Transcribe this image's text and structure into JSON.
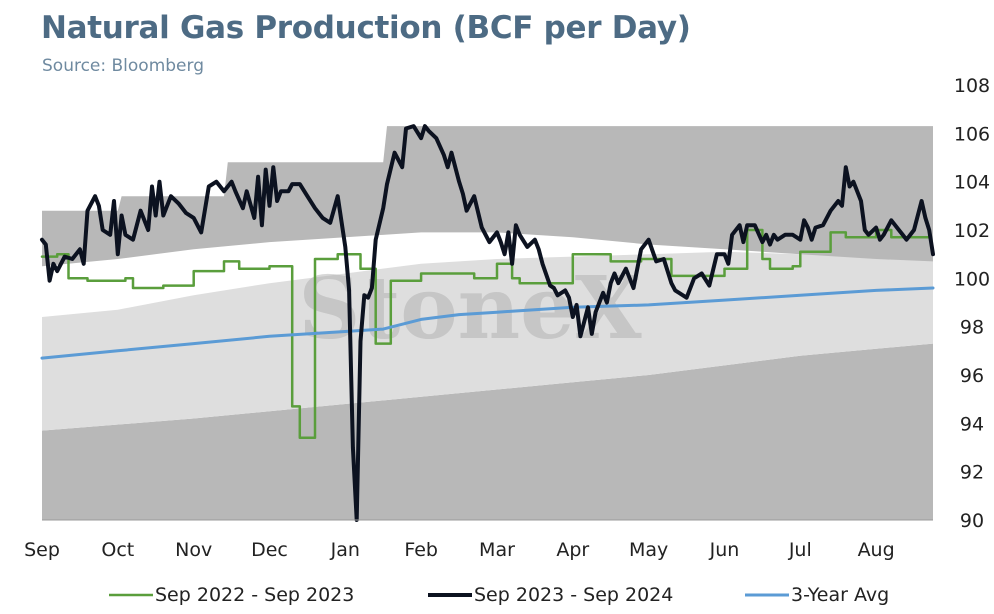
{
  "chart_data": {
    "type": "line",
    "title": "Natural Gas Production (BCF per Day)",
    "subtitle": "Source: Bloomberg",
    "watermark": "StoneX",
    "ylim": [
      90,
      108
    ],
    "y_ticks": [
      90,
      92,
      94,
      96,
      98,
      100,
      102,
      104,
      106,
      108
    ],
    "y_axis_position": "right",
    "x_tick_labels": [
      "Sep",
      "Oct",
      "Nov",
      "Dec",
      "Jan",
      "Feb",
      "Mar",
      "Apr",
      "May",
      "Jun",
      "Jul",
      "Aug"
    ],
    "grid": false,
    "legend_position": "bottom",
    "bands": [
      {
        "name": "range-dark-lower",
        "color": "#b8b8b8",
        "upper": [
          [
            0,
            93.7
          ],
          [
            2,
            94.2
          ],
          [
            4,
            94.8
          ],
          [
            6,
            95.4
          ],
          [
            8,
            96.0
          ],
          [
            10,
            96.8
          ],
          [
            11.75,
            97.3
          ]
        ],
        "lower": [
          [
            0,
            90
          ],
          [
            11.75,
            90
          ]
        ]
      },
      {
        "name": "range-light",
        "color": "#dedede",
        "upper": [
          [
            0,
            98.4
          ],
          [
            1,
            98.7
          ],
          [
            2,
            99.3
          ],
          [
            3,
            99.8
          ],
          [
            4,
            100.2
          ],
          [
            5,
            100.6
          ],
          [
            6,
            100.8
          ],
          [
            7,
            100.9
          ],
          [
            8,
            101.0
          ],
          [
            9,
            101.1
          ],
          [
            10,
            101.0
          ],
          [
            11,
            101.2
          ],
          [
            11.75,
            101.2
          ]
        ],
        "lower": [
          [
            0,
            93.7
          ],
          [
            2,
            94.2
          ],
          [
            4,
            94.8
          ],
          [
            6,
            95.4
          ],
          [
            8,
            96.0
          ],
          [
            10,
            96.8
          ],
          [
            11.75,
            97.3
          ]
        ]
      },
      {
        "name": "range-dark-upper",
        "color": "#b8b8b8",
        "upper": [
          [
            0,
            102.8
          ],
          [
            1,
            102.8
          ],
          [
            1.05,
            103.4
          ],
          [
            2.4,
            103.4
          ],
          [
            2.45,
            104.8
          ],
          [
            4.5,
            104.8
          ],
          [
            4.55,
            106.3
          ],
          [
            11.75,
            106.3
          ]
        ],
        "lower": [
          [
            0,
            100.5
          ],
          [
            1,
            100.8
          ],
          [
            2,
            101.2
          ],
          [
            3,
            101.5
          ],
          [
            4,
            101.7
          ],
          [
            5,
            101.9
          ],
          [
            6,
            101.9
          ],
          [
            7,
            101.7
          ],
          [
            8,
            101.4
          ],
          [
            9,
            101.2
          ],
          [
            10,
            101.0
          ],
          [
            11,
            100.8
          ],
          [
            11.75,
            100.7
          ]
        ]
      }
    ],
    "series": [
      {
        "name": "Sep 2022 - Sep 2023",
        "color": "#5a9e3c",
        "width": 2.5,
        "step": true,
        "values": [
          [
            0,
            100.9
          ],
          [
            0.2,
            101.0
          ],
          [
            0.35,
            100.0
          ],
          [
            0.6,
            99.9
          ],
          [
            1.1,
            100.0
          ],
          [
            1.2,
            99.6
          ],
          [
            1.6,
            99.7
          ],
          [
            1.9,
            99.7
          ],
          [
            2.0,
            100.3
          ],
          [
            2.4,
            100.7
          ],
          [
            2.6,
            100.4
          ],
          [
            3.0,
            100.5
          ],
          [
            3.3,
            94.7
          ],
          [
            3.4,
            93.4
          ],
          [
            3.6,
            100.8
          ],
          [
            3.9,
            101.0
          ],
          [
            4.2,
            100.4
          ],
          [
            4.4,
            97.3
          ],
          [
            4.6,
            99.9
          ],
          [
            5.0,
            100.2
          ],
          [
            5.2,
            100.2
          ],
          [
            5.7,
            100.0
          ],
          [
            6.0,
            100.6
          ],
          [
            6.2,
            100.0
          ],
          [
            6.3,
            99.8
          ],
          [
            7.0,
            101.0
          ],
          [
            7.5,
            100.7
          ],
          [
            7.9,
            100.8
          ],
          [
            8.3,
            100.1
          ],
          [
            9.0,
            100.4
          ],
          [
            9.3,
            102.0
          ],
          [
            9.5,
            100.8
          ],
          [
            9.6,
            100.4
          ],
          [
            9.9,
            100.5
          ],
          [
            10.0,
            101.1
          ],
          [
            10.4,
            101.9
          ],
          [
            10.6,
            101.7
          ],
          [
            11.0,
            102.0
          ],
          [
            11.2,
            101.7
          ],
          [
            11.5,
            101.7
          ],
          [
            11.7,
            101.9
          ]
        ]
      },
      {
        "name": "Sep 2023 - Sep 2024",
        "color": "#0c1220",
        "width": 4,
        "step": false,
        "values": [
          [
            0,
            101.6
          ],
          [
            0.05,
            101.4
          ],
          [
            0.1,
            99.9
          ],
          [
            0.15,
            100.6
          ],
          [
            0.2,
            100.3
          ],
          [
            0.3,
            100.9
          ],
          [
            0.4,
            100.8
          ],
          [
            0.5,
            101.2
          ],
          [
            0.55,
            100.6
          ],
          [
            0.6,
            102.8
          ],
          [
            0.7,
            103.4
          ],
          [
            0.75,
            103.0
          ],
          [
            0.8,
            102.0
          ],
          [
            0.9,
            101.8
          ],
          [
            0.95,
            103.2
          ],
          [
            1.0,
            101.0
          ],
          [
            1.05,
            102.6
          ],
          [
            1.1,
            101.8
          ],
          [
            1.2,
            101.6
          ],
          [
            1.3,
            102.8
          ],
          [
            1.4,
            102.0
          ],
          [
            1.45,
            103.8
          ],
          [
            1.5,
            102.6
          ],
          [
            1.55,
            104.0
          ],
          [
            1.6,
            102.6
          ],
          [
            1.7,
            103.4
          ],
          [
            1.8,
            103.1
          ],
          [
            1.9,
            102.7
          ],
          [
            2.0,
            102.5
          ],
          [
            2.1,
            101.9
          ],
          [
            2.2,
            103.8
          ],
          [
            2.3,
            104.0
          ],
          [
            2.4,
            103.6
          ],
          [
            2.5,
            104.0
          ],
          [
            2.55,
            103.6
          ],
          [
            2.65,
            102.9
          ],
          [
            2.7,
            103.6
          ],
          [
            2.8,
            102.5
          ],
          [
            2.85,
            104.2
          ],
          [
            2.9,
            102.2
          ],
          [
            2.95,
            104.5
          ],
          [
            3.0,
            103.0
          ],
          [
            3.05,
            104.6
          ],
          [
            3.1,
            103.2
          ],
          [
            3.15,
            103.6
          ],
          [
            3.25,
            103.6
          ],
          [
            3.3,
            103.9
          ],
          [
            3.4,
            103.9
          ],
          [
            3.5,
            103.4
          ],
          [
            3.6,
            102.9
          ],
          [
            3.7,
            102.5
          ],
          [
            3.8,
            102.3
          ],
          [
            3.9,
            103.4
          ],
          [
            4.0,
            101.3
          ],
          [
            4.05,
            99.5
          ],
          [
            4.1,
            93.0
          ],
          [
            4.15,
            90.0
          ],
          [
            4.2,
            97.4
          ],
          [
            4.25,
            99.3
          ],
          [
            4.3,
            99.2
          ],
          [
            4.35,
            99.6
          ],
          [
            4.4,
            101.6
          ],
          [
            4.5,
            102.9
          ],
          [
            4.55,
            103.9
          ],
          [
            4.65,
            105.2
          ],
          [
            4.75,
            104.6
          ],
          [
            4.8,
            106.2
          ],
          [
            4.9,
            106.3
          ],
          [
            5.0,
            105.8
          ],
          [
            5.05,
            106.3
          ],
          [
            5.1,
            106.1
          ],
          [
            5.2,
            105.8
          ],
          [
            5.3,
            105.1
          ],
          [
            5.35,
            104.6
          ],
          [
            5.4,
            105.2
          ],
          [
            5.5,
            104.0
          ],
          [
            5.55,
            103.5
          ],
          [
            5.6,
            102.8
          ],
          [
            5.7,
            103.4
          ],
          [
            5.8,
            102.1
          ],
          [
            5.9,
            101.5
          ],
          [
            6.0,
            101.9
          ],
          [
            6.05,
            101.5
          ],
          [
            6.1,
            101.0
          ],
          [
            6.15,
            101.9
          ],
          [
            6.2,
            100.6
          ],
          [
            6.25,
            102.2
          ],
          [
            6.3,
            101.8
          ],
          [
            6.4,
            101.3
          ],
          [
            6.5,
            101.6
          ],
          [
            6.55,
            101.2
          ],
          [
            6.6,
            100.6
          ],
          [
            6.7,
            99.7
          ],
          [
            6.75,
            99.6
          ],
          [
            6.8,
            99.3
          ],
          [
            6.9,
            99.5
          ],
          [
            6.95,
            99.2
          ],
          [
            7.0,
            98.4
          ],
          [
            7.05,
            98.9
          ],
          [
            7.1,
            97.6
          ],
          [
            7.2,
            98.8
          ],
          [
            7.25,
            97.7
          ],
          [
            7.3,
            98.6
          ],
          [
            7.4,
            99.4
          ],
          [
            7.45,
            99.0
          ],
          [
            7.5,
            99.8
          ],
          [
            7.55,
            100.2
          ],
          [
            7.6,
            99.8
          ],
          [
            7.7,
            100.4
          ],
          [
            7.8,
            99.6
          ],
          [
            7.9,
            101.2
          ],
          [
            8.0,
            101.6
          ],
          [
            8.1,
            100.7
          ],
          [
            8.2,
            100.8
          ],
          [
            8.3,
            99.8
          ],
          [
            8.35,
            99.5
          ],
          [
            8.4,
            99.4
          ],
          [
            8.5,
            99.2
          ],
          [
            8.6,
            100.0
          ],
          [
            8.7,
            100.2
          ],
          [
            8.8,
            99.7
          ],
          [
            8.9,
            101.0
          ],
          [
            9.0,
            101.0
          ],
          [
            9.05,
            100.6
          ],
          [
            9.1,
            101.8
          ],
          [
            9.2,
            102.2
          ],
          [
            9.25,
            101.5
          ],
          [
            9.3,
            102.2
          ],
          [
            9.4,
            102.2
          ],
          [
            9.5,
            101.5
          ],
          [
            9.55,
            101.8
          ],
          [
            9.6,
            101.4
          ],
          [
            9.65,
            101.8
          ],
          [
            9.7,
            101.6
          ],
          [
            9.8,
            101.8
          ],
          [
            9.9,
            101.8
          ],
          [
            10.0,
            101.6
          ],
          [
            10.05,
            102.4
          ],
          [
            10.1,
            102.1
          ],
          [
            10.15,
            101.6
          ],
          [
            10.2,
            102.1
          ],
          [
            10.3,
            102.2
          ],
          [
            10.4,
            102.8
          ],
          [
            10.5,
            103.2
          ],
          [
            10.55,
            103.0
          ],
          [
            10.6,
            104.6
          ],
          [
            10.65,
            103.8
          ],
          [
            10.7,
            104.0
          ],
          [
            10.75,
            103.6
          ],
          [
            10.8,
            103.2
          ],
          [
            10.85,
            102.0
          ],
          [
            10.9,
            101.8
          ],
          [
            11.0,
            102.1
          ],
          [
            11.05,
            101.6
          ],
          [
            11.1,
            101.8
          ],
          [
            11.2,
            102.4
          ],
          [
            11.3,
            102.0
          ],
          [
            11.35,
            101.8
          ],
          [
            11.4,
            101.6
          ],
          [
            11.5,
            102.0
          ],
          [
            11.6,
            103.2
          ],
          [
            11.65,
            102.5
          ],
          [
            11.7,
            102.0
          ],
          [
            11.75,
            101.0
          ]
        ]
      },
      {
        "name": "3-Year Avg",
        "color": "#5b9bd5",
        "width": 3,
        "step": false,
        "values": [
          [
            0,
            96.7
          ],
          [
            1,
            97.0
          ],
          [
            2,
            97.3
          ],
          [
            3,
            97.6
          ],
          [
            3.5,
            97.7
          ],
          [
            4,
            97.8
          ],
          [
            4.5,
            97.9
          ],
          [
            5,
            98.3
          ],
          [
            5.5,
            98.5
          ],
          [
            6,
            98.6
          ],
          [
            7,
            98.8
          ],
          [
            8,
            98.9
          ],
          [
            9,
            99.1
          ],
          [
            10,
            99.3
          ],
          [
            11,
            99.5
          ],
          [
            11.75,
            99.6
          ]
        ]
      }
    ]
  }
}
